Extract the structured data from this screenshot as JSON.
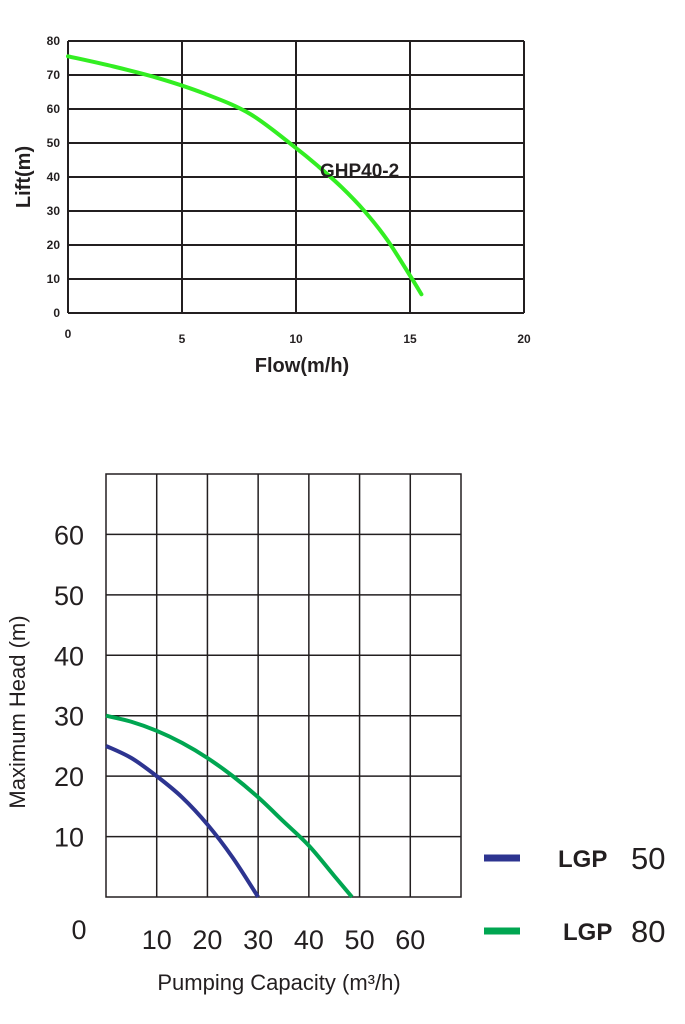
{
  "chart_data": [
    {
      "type": "line",
      "title": "",
      "xlabel": "Flow(m/h)",
      "ylabel": "Lift(m)",
      "xlim": [
        0,
        20
      ],
      "ylim": [
        0,
        80
      ],
      "x_ticks": [
        "0",
        "5",
        "10",
        "15",
        "20"
      ],
      "y_ticks": [
        "0",
        "10",
        "20",
        "30",
        "40",
        "50",
        "60",
        "70",
        "80"
      ],
      "grid": true,
      "annotation": "GHP40-2",
      "series": [
        {
          "name": "GHP40-2",
          "color": "#33ee22",
          "x": [
            0,
            2,
            4,
            6,
            8,
            10,
            11,
            12,
            13,
            14,
            15,
            15.5
          ],
          "y": [
            75.5,
            72.5,
            69,
            64.5,
            58.5,
            48.5,
            43,
            37,
            30,
            21.5,
            11,
            5.5
          ]
        }
      ]
    },
    {
      "type": "line",
      "title": "",
      "xlabel": "Pumping Capacity (m³/h)",
      "ylabel": "Maximum Head (m)",
      "xlim": [
        0,
        70
      ],
      "ylim": [
        0,
        70
      ],
      "x_ticks": [
        "10",
        "20",
        "30",
        "40",
        "50",
        "60"
      ],
      "y_ticks": [
        "10",
        "20",
        "30",
        "40",
        "50",
        "60"
      ],
      "origin_label": "0",
      "grid": true,
      "legend": "right",
      "series": [
        {
          "name": "LGP 50",
          "legend_name": "LGP",
          "legend_num": "50",
          "color": "#2d3490",
          "x": [
            0,
            5,
            10,
            15,
            20,
            25,
            30
          ],
          "y": [
            25,
            23,
            20,
            16.5,
            12,
            6.5,
            0
          ]
        },
        {
          "name": "LGP 80",
          "legend_name": "LGP",
          "legend_num": "80",
          "color": "#00a651",
          "x": [
            0,
            5,
            10,
            15,
            20,
            25,
            30,
            35,
            40,
            45,
            48.5
          ],
          "y": [
            30,
            29,
            27.5,
            25.5,
            23,
            20,
            16.5,
            12.5,
            8.5,
            3.5,
            0
          ]
        }
      ]
    }
  ]
}
